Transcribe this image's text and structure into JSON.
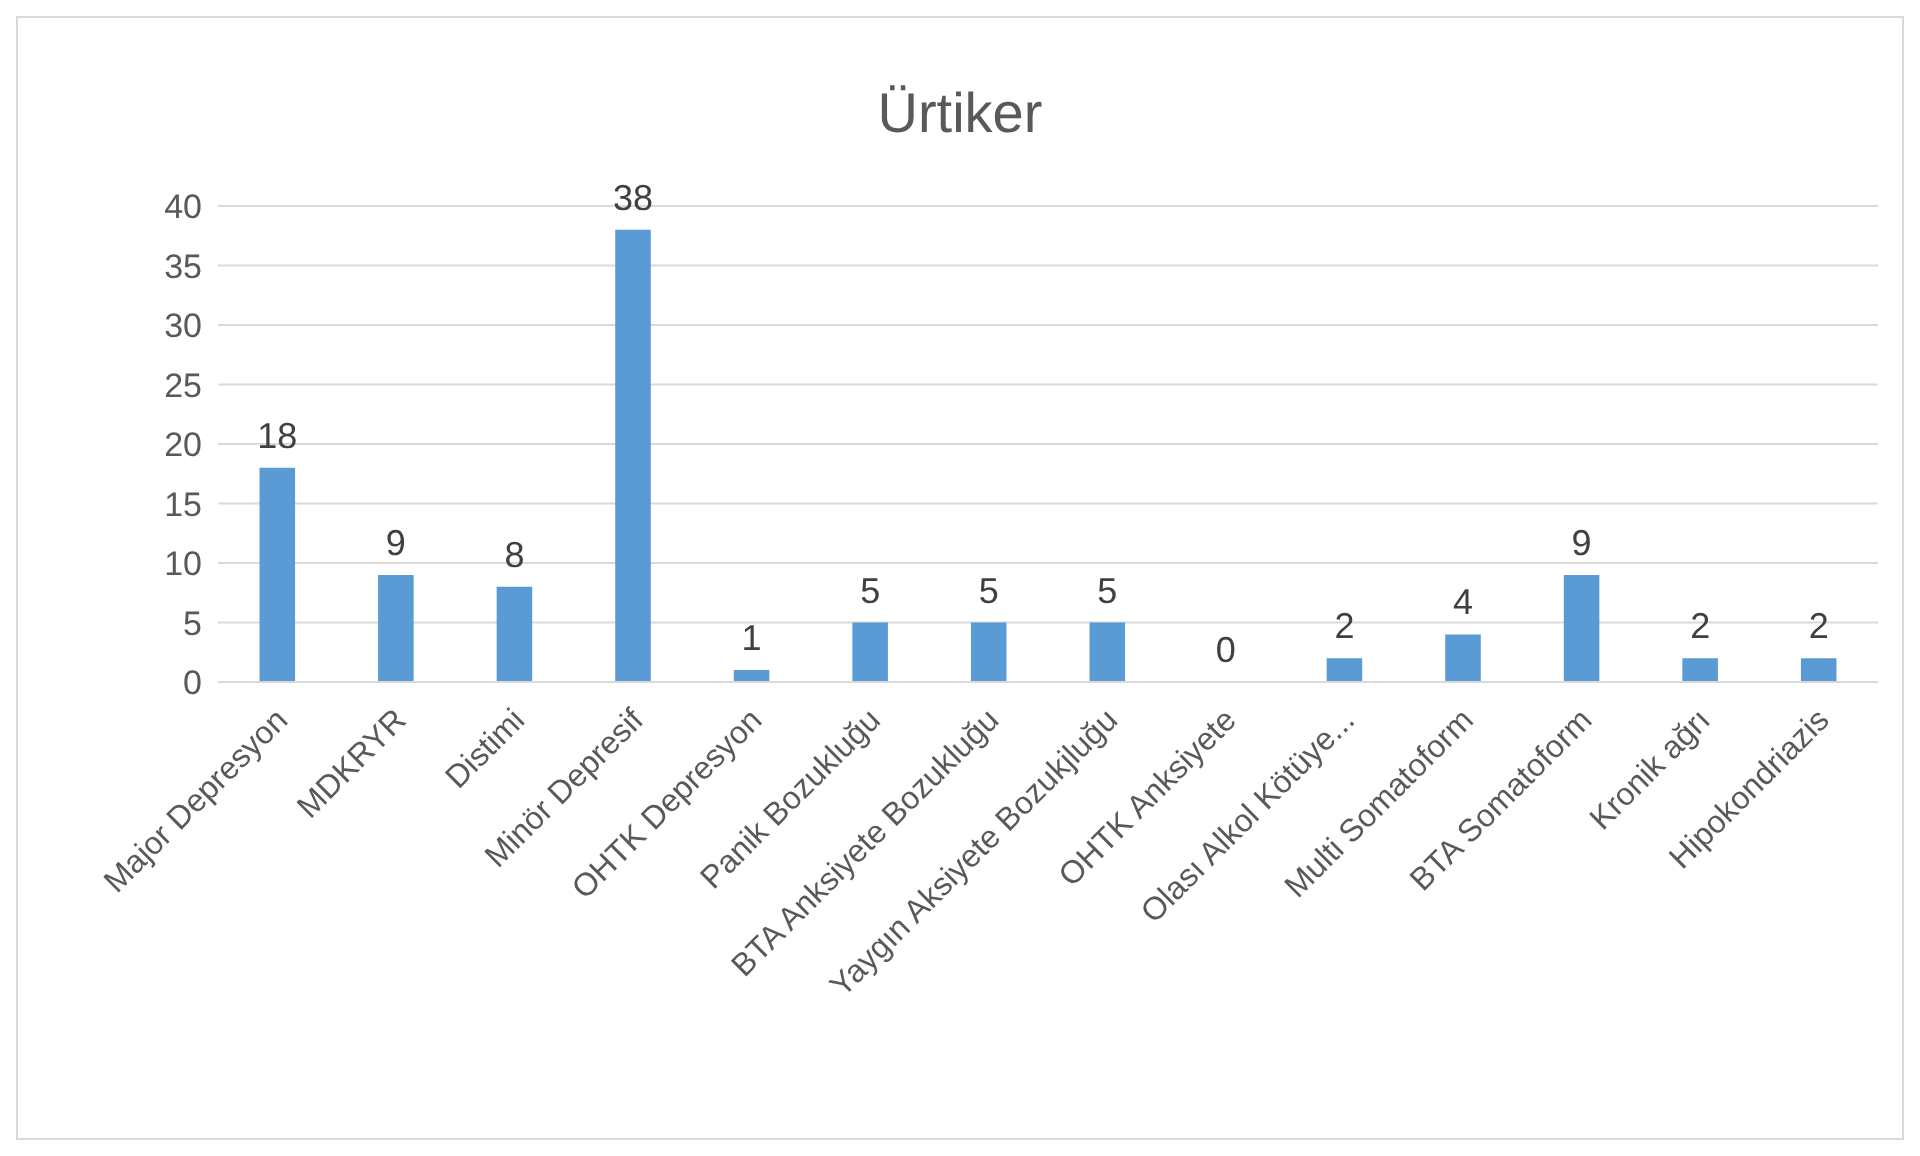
{
  "chart_data": {
    "type": "bar",
    "title": "Ürtiker",
    "categories": [
      "Major Depresyon",
      "MDKRYR",
      "Distimi",
      "Minör Depresif",
      "OHTK Depresyon",
      "Panik Bozukluğu",
      "BTA Anksiyete Bozukluğu",
      "Yaygın Aksiyete Bozukjluğu",
      "OHTK Anksiyete",
      "Olası Alkol Kötüye...",
      "Multi Somatoform",
      "BTA Somatoform",
      "Kronik ağrı",
      "Hipokondriazis"
    ],
    "values": [
      18,
      9,
      8,
      38,
      1,
      5,
      5,
      5,
      0,
      2,
      4,
      9,
      2,
      2
    ],
    "color": "#5b9bd5",
    "ylim": [
      0,
      40
    ],
    "yticks": [
      0,
      5,
      10,
      15,
      20,
      25,
      30,
      35,
      40
    ],
    "grid": "y",
    "data_labels": true
  }
}
